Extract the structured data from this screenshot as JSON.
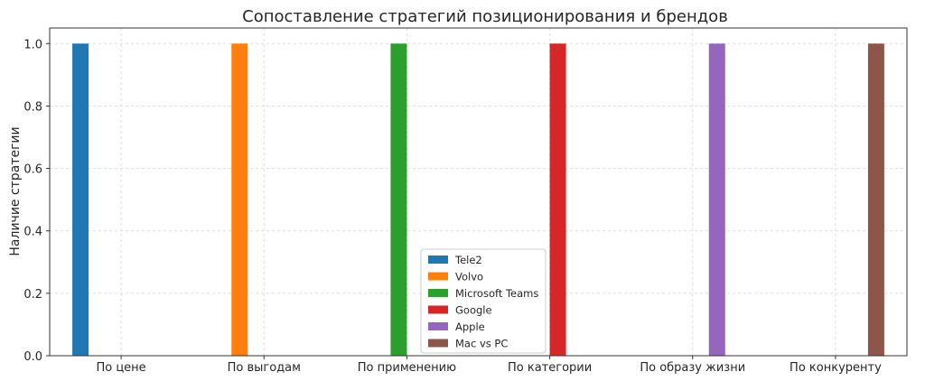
{
  "chart_data": {
    "type": "bar",
    "title": "Сопоставление стратегий позиционирования и брендов",
    "xlabel": "",
    "ylabel": "Наличие стратегии",
    "ylim": [
      0,
      1.05
    ],
    "yticks": [
      "0.0",
      "0.2",
      "0.4",
      "0.6",
      "0.8",
      "1.0"
    ],
    "grid": true,
    "legend_position": "bottom-center",
    "categories": [
      "По цене",
      "По выгодам",
      "По применению",
      "По категории",
      "По образу жизни",
      "По конкуренту"
    ],
    "series": [
      {
        "name": "Tele2",
        "color": "#1f77b4",
        "values": [
          1,
          0,
          0,
          0,
          0,
          0
        ]
      },
      {
        "name": "Volvo",
        "color": "#ff7f0e",
        "values": [
          0,
          1,
          0,
          0,
          0,
          0
        ]
      },
      {
        "name": "Microsoft Teams",
        "color": "#2ca02c",
        "values": [
          0,
          0,
          1,
          0,
          0,
          0
        ]
      },
      {
        "name": "Google",
        "color": "#d62728",
        "values": [
          0,
          0,
          0,
          1,
          0,
          0
        ]
      },
      {
        "name": "Apple",
        "color": "#9467bd",
        "values": [
          0,
          0,
          0,
          0,
          1,
          0
        ]
      },
      {
        "name": "Mac vs PC",
        "color": "#8c564b",
        "values": [
          0,
          0,
          0,
          0,
          0,
          1
        ]
      }
    ]
  }
}
